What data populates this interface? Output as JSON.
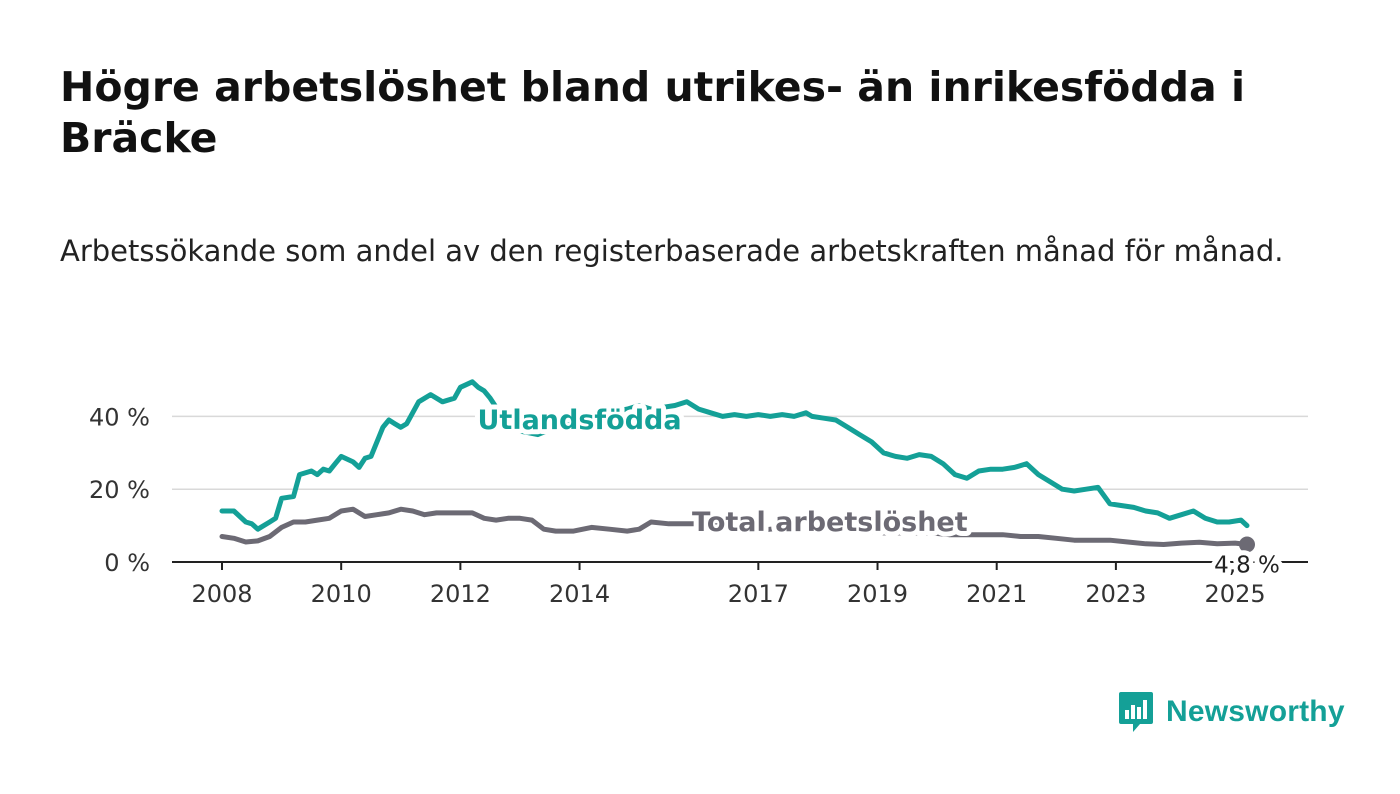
{
  "header": {
    "title": "Högre arbetslöshet bland utrikes- än inrikesfödda i Bräcke",
    "subtitle": "Arbetssökande som andel av den registerbaserade arbetskraften månad för månad."
  },
  "brand": {
    "name": "Newsworthy",
    "color": "#14a097",
    "icon": "bar-chart-speech-bubble-icon"
  },
  "chart_data": {
    "type": "line",
    "title": "",
    "xlabel": "",
    "ylabel": "",
    "ylim": [
      0,
      50
    ],
    "xlim": [
      2008.0,
      2025.5
    ],
    "yticks": [
      {
        "value": 0,
        "label": "0 %"
      },
      {
        "value": 20,
        "label": "20 %"
      },
      {
        "value": 40,
        "label": "40 %"
      }
    ],
    "xticks": [
      {
        "value": 2008,
        "label": "2008"
      },
      {
        "value": 2010,
        "label": "2010"
      },
      {
        "value": 2012,
        "label": "2012"
      },
      {
        "value": 2014,
        "label": "2014"
      },
      {
        "value": 2017,
        "label": "2017"
      },
      {
        "value": 2019,
        "label": "2019"
      },
      {
        "value": 2021,
        "label": "2021"
      },
      {
        "value": 2023,
        "label": "2023"
      },
      {
        "value": 2025,
        "label": "2025"
      }
    ],
    "grid": true,
    "legend": "none",
    "series": [
      {
        "name": "Utlandsfödda",
        "color": "#14a097",
        "x": [
          2008.0,
          2008.2,
          2008.4,
          2008.5,
          2008.6,
          2008.8,
          2008.9,
          2009.0,
          2009.2,
          2009.3,
          2009.5,
          2009.6,
          2009.7,
          2009.8,
          2009.9,
          2010.0,
          2010.2,
          2010.3,
          2010.4,
          2010.5,
          2010.7,
          2010.8,
          2010.9,
          2011.0,
          2011.1,
          2011.3,
          2011.5,
          2011.7,
          2011.9,
          2012.0,
          2012.2,
          2012.3,
          2012.4,
          2012.5,
          2012.7,
          2012.8,
          2012.9,
          2013.0,
          2013.3,
          2013.6,
          2013.9,
          2014.2,
          2014.5,
          2014.8,
          2015.0,
          2015.2,
          2015.4,
          2015.6,
          2015.8,
          2016.0,
          2016.2,
          2016.4,
          2016.6,
          2016.8,
          2017.0,
          2017.2,
          2017.4,
          2017.6,
          2017.8,
          2017.9,
          2018.1,
          2018.3,
          2018.5,
          2018.7,
          2018.9,
          2019.1,
          2019.3,
          2019.5,
          2019.7,
          2019.9,
          2020.1,
          2020.3,
          2020.5,
          2020.7,
          2020.9,
          2021.1,
          2021.3,
          2021.5,
          2021.7,
          2021.9,
          2022.1,
          2022.3,
          2022.5,
          2022.7,
          2022.9,
          2023.1,
          2023.3,
          2023.5,
          2023.7,
          2023.9,
          2024.1,
          2024.3,
          2024.5,
          2024.7,
          2024.9,
          2025.1,
          2025.2
        ],
        "values": [
          14,
          14,
          11,
          10.5,
          9,
          11,
          12,
          17.5,
          18,
          24,
          25,
          24,
          25.5,
          25,
          27,
          29,
          27.5,
          26,
          28.5,
          29,
          37,
          39,
          38,
          37,
          38,
          44,
          46,
          44,
          45,
          48,
          49.5,
          48,
          47,
          45,
          40,
          38,
          37,
          36,
          35,
          37,
          38,
          40,
          41,
          42,
          43,
          42,
          42.5,
          43,
          44,
          42,
          41,
          40,
          40.5,
          40,
          40.5,
          40,
          40.5,
          40,
          41,
          40,
          39.5,
          39,
          37,
          35,
          33,
          30,
          29,
          28.5,
          29.5,
          29,
          27,
          24,
          23,
          25,
          25.5,
          25.5,
          26,
          27,
          24,
          22,
          20,
          19.5,
          20,
          20.5,
          16,
          15.5,
          15,
          14,
          13.5,
          12,
          13,
          14,
          12,
          11,
          11,
          11.5,
          10
        ]
      },
      {
        "name": "Total arbetslöshet",
        "color": "#6c6a74",
        "x": [
          2008.0,
          2008.2,
          2008.4,
          2008.6,
          2008.8,
          2009.0,
          2009.2,
          2009.4,
          2009.6,
          2009.8,
          2010.0,
          2010.2,
          2010.4,
          2010.6,
          2010.8,
          2011.0,
          2011.2,
          2011.4,
          2011.6,
          2011.8,
          2012.0,
          2012.2,
          2012.4,
          2012.6,
          2012.8,
          2013.0,
          2013.2,
          2013.4,
          2013.6,
          2013.9,
          2014.2,
          2014.5,
          2014.8,
          2015.0,
          2015.2,
          2015.5,
          2015.8,
          2016.0,
          2016.3,
          2016.6,
          2016.9,
          2017.2,
          2017.5,
          2017.8,
          2018.1,
          2018.4,
          2018.7,
          2019.0,
          2019.3,
          2019.6,
          2019.9,
          2020.2,
          2020.5,
          2020.8,
          2021.1,
          2021.4,
          2021.7,
          2022.0,
          2022.3,
          2022.6,
          2022.9,
          2023.2,
          2023.5,
          2023.8,
          2024.1,
          2024.4,
          2024.7,
          2025.0,
          2025.2
        ],
        "values": [
          7,
          6.5,
          5.5,
          5.8,
          7,
          9.5,
          11,
          11,
          11.5,
          12,
          14,
          14.5,
          12.5,
          13,
          13.5,
          14.5,
          14,
          13,
          13.5,
          13.5,
          13.5,
          13.5,
          12,
          11.5,
          12,
          12,
          11.5,
          9,
          8.5,
          8.5,
          9.5,
          9,
          8.5,
          9,
          11,
          10.5,
          10.5,
          10.5,
          11,
          9,
          8.5,
          9,
          9.5,
          9,
          9,
          8.5,
          8.5,
          8,
          8,
          8,
          8,
          7.5,
          7.5,
          7.5,
          7.5,
          7,
          7,
          6.5,
          6,
          6,
          6,
          5.5,
          5,
          4.8,
          5.2,
          5.4,
          5,
          5.2,
          4.8
        ]
      }
    ],
    "annotations": [
      {
        "text": "Utlandsfödda",
        "series": "Utlandsfödda",
        "x": 2014.0,
        "y": 36.5
      },
      {
        "text": "Total arbetslöshet",
        "series": "Total arbetslöshet",
        "x": 2018.2,
        "y": 8.5
      },
      {
        "text": "4,8 %",
        "series": "Total arbetslöshet",
        "x": 2025.2,
        "y": 4.8
      }
    ]
  }
}
